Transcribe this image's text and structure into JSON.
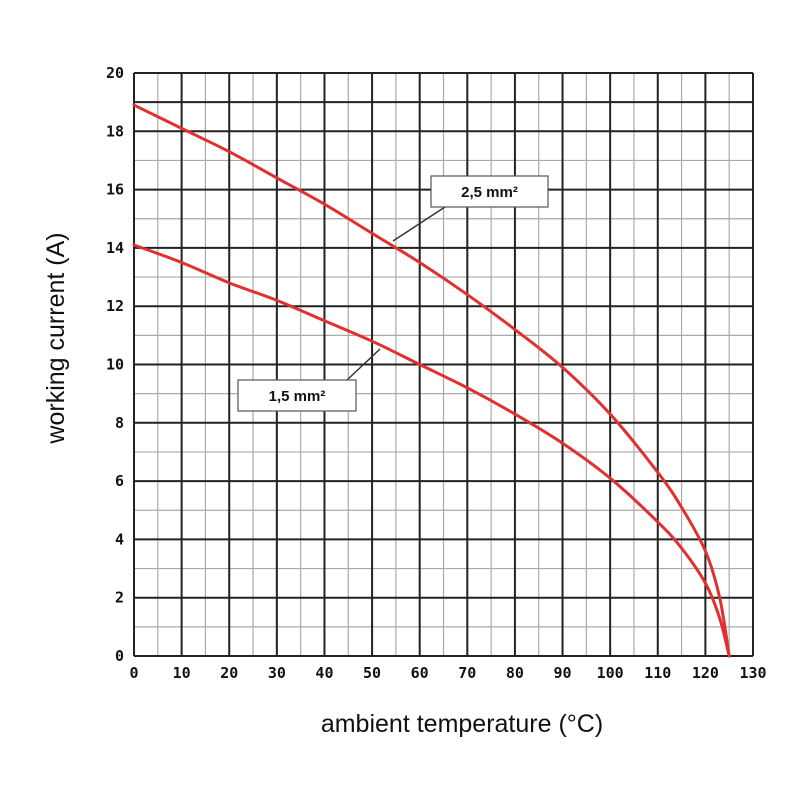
{
  "chart_data": {
    "type": "line",
    "xlabel": "ambient temperature (°C)",
    "ylabel": "working current (A)",
    "xlim": [
      0,
      130
    ],
    "ylim": [
      0,
      20
    ],
    "x_ticks": [
      "0",
      "10",
      "20",
      "30",
      "40",
      "50",
      "60",
      "70",
      "80",
      "90",
      "100",
      "110",
      "120",
      "130"
    ],
    "y_ticks": [
      "0",
      "2",
      "4",
      "6",
      "8",
      "10",
      "12",
      "14",
      "16",
      "18",
      "20"
    ],
    "grid": true,
    "series": [
      {
        "name": "2,5 mm²",
        "color": "#e03030",
        "x": [
          0,
          10,
          20,
          30,
          40,
          50,
          60,
          70,
          80,
          90,
          100,
          110,
          115,
          120,
          123,
          125
        ],
        "y": [
          18.9,
          18.1,
          17.3,
          16.4,
          15.5,
          14.5,
          13.5,
          12.4,
          11.2,
          9.9,
          8.3,
          6.3,
          5.1,
          3.6,
          2.0,
          0.0
        ]
      },
      {
        "name": "1,5 mm²",
        "color": "#e03030",
        "x": [
          0,
          10,
          20,
          30,
          40,
          50,
          60,
          70,
          80,
          90,
          100,
          110,
          115,
          120,
          123,
          125
        ],
        "y": [
          14.1,
          13.5,
          12.8,
          12.2,
          11.5,
          10.8,
          10.0,
          9.2,
          8.3,
          7.3,
          6.1,
          4.6,
          3.7,
          2.5,
          1.3,
          0.0
        ]
      }
    ],
    "annotations": [
      {
        "text": "2,5 mm²",
        "series": "2,5 mm²"
      },
      {
        "text": "1,5 mm²",
        "series": "1,5 mm²"
      }
    ]
  }
}
